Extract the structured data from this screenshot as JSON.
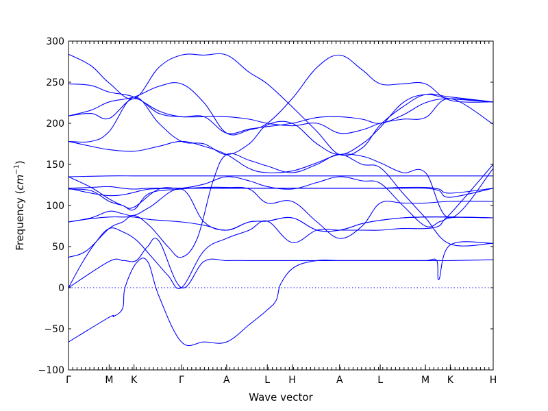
{
  "chart_data": {
    "type": "line",
    "xlabel": "Wave vector",
    "ylabel": "Frequency",
    "ylabel_unit": "cm",
    "ylabel_unit_exponent": "−1",
    "ylim": [
      -100,
      300
    ],
    "yticks": [
      -100,
      -50,
      0,
      50,
      100,
      150,
      200,
      250,
      300
    ],
    "ytick_labels": [
      "−100",
      "−50",
      "0",
      "50",
      "100",
      "150",
      "200",
      "250",
      "300"
    ],
    "xlim": [
      0,
      9.4
    ],
    "x_ticks": [
      {
        "label": "Γ",
        "x": 0
      },
      {
        "label": "M",
        "x": 0.9
      },
      {
        "label": "K",
        "x": 1.45
      },
      {
        "label": "Γ",
        "x": 2.5
      },
      {
        "label": "A",
        "x": 3.5
      },
      {
        "label": "L",
        "x": 4.4
      },
      {
        "label": "H",
        "x": 4.95
      },
      {
        "label": "A",
        "x": 6.0
      },
      {
        "label": "L",
        "x": 6.9
      },
      {
        "label": "M",
        "x": 7.9
      },
      {
        "label": "K",
        "x": 8.45
      },
      {
        "label": "H",
        "x": 9.4
      }
    ],
    "zero_line": 0,
    "line_color": "#0000ff",
    "series": [
      {
        "x": [
          0,
          0.9,
          1.0,
          1.2,
          1.25,
          1.5,
          1.75,
          2.0,
          2.5,
          3.0,
          3.5,
          4.0,
          4.4,
          4.6,
          4.7,
          5.0,
          5.5,
          6.0,
          6.5,
          6.9,
          7.4,
          7.9,
          8.15,
          8.2,
          8.45,
          9.4
        ],
        "y": [
          -66,
          -36,
          -35,
          -25,
          0,
          30,
          32,
          -10,
          -66,
          -66,
          -66,
          -45,
          -27,
          -15,
          5,
          25,
          33,
          33,
          33,
          33,
          33,
          33,
          33,
          10,
          52,
          54
        ]
      },
      {
        "x": [
          0,
          0.9,
          1.2,
          1.25,
          1.5,
          1.75,
          2.0,
          2.5,
          3.0,
          3.5,
          4.0,
          4.4,
          4.6,
          4.7,
          5.0,
          5.5,
          6.0,
          6.5,
          6.9,
          7.4,
          7.9,
          8.15,
          8.2,
          8.45,
          9.4
        ],
        "y": [
          0,
          32,
          33,
          33,
          33,
          50,
          57,
          0,
          32,
          33,
          33,
          33,
          33,
          33,
          33,
          33,
          33,
          33,
          33,
          33,
          33,
          33,
          33,
          33,
          34
        ]
      },
      {
        "x": [
          0,
          0.3,
          0.6,
          0.9,
          1.2,
          1.5,
          1.8,
          2.2,
          2.5,
          3.0,
          3.5,
          4.0,
          4.4,
          4.95,
          5.5,
          6.0,
          6.5,
          6.9,
          7.4,
          7.9,
          8.2,
          8.45,
          9.4
        ],
        "y": [
          0,
          30,
          55,
          72,
          68,
          58,
          40,
          15,
          0,
          45,
          60,
          70,
          81,
          55,
          70,
          70,
          70,
          70,
          72,
          72,
          75,
          85,
          85
        ]
      },
      {
        "x": [
          0,
          0.4,
          0.9,
          1.2,
          1.45,
          1.8,
          2.2,
          2.5,
          2.85,
          3.2,
          3.5,
          4.0,
          4.4,
          4.95,
          5.5,
          6.0,
          6.5,
          6.9,
          7.4,
          7.9,
          8.45,
          9.4
        ],
        "y": [
          37,
          45,
          72,
          80,
          88,
          75,
          50,
          37,
          60,
          130,
          162,
          155,
          148,
          140,
          150,
          162,
          150,
          146,
          115,
          85,
          53,
          54
        ]
      },
      {
        "x": [
          0,
          0.5,
          0.9,
          1.2,
          1.45,
          1.8,
          2.5,
          3.0,
          3.5,
          4.0,
          4.4,
          4.95,
          5.5,
          6.0,
          6.5,
          6.9,
          7.4,
          7.9,
          8.45,
          9.4
        ],
        "y": [
          80,
          84,
          86,
          86,
          86,
          83,
          80,
          76,
          70,
          80,
          81,
          85,
          70,
          70,
          78,
          82,
          85,
          86,
          86,
          85
        ]
      },
      {
        "x": [
          0,
          0.5,
          0.9,
          1.2,
          1.45,
          1.8,
          2.5,
          3.0,
          3.5,
          4.0,
          4.4,
          4.95,
          5.5,
          6.0,
          6.5,
          6.9,
          7.4,
          7.9,
          8.45,
          9.4
        ],
        "y": [
          80,
          85,
          93,
          90,
          88,
          98,
          120,
          80,
          70,
          80,
          81,
          85,
          70,
          70,
          78,
          82,
          85,
          86,
          86,
          85
        ]
      },
      {
        "x": [
          0,
          0.5,
          0.9,
          1.2,
          1.45,
          1.8,
          2.5,
          3.0,
          3.5,
          4.0,
          4.4,
          4.95,
          5.5,
          6.0,
          6.5,
          6.9,
          7.4,
          7.9,
          8.45,
          9.4
        ],
        "y": [
          120,
          118,
          105,
          100,
          95,
          115,
          120,
          122,
          122,
          120,
          103,
          105,
          80,
          60,
          75,
          103,
          103,
          103,
          105,
          105
        ]
      },
      {
        "x": [
          0,
          0.5,
          0.9,
          1.2,
          1.45,
          1.8,
          2.5,
          3.0,
          3.5,
          4.0,
          4.4,
          4.95,
          5.5,
          6.0,
          6.5,
          6.9,
          7.4,
          7.9,
          8.2,
          8.45,
          9.4
        ],
        "y": [
          121,
          115,
          112,
          113,
          116,
          120,
          121,
          121,
          121,
          121,
          121,
          121,
          121,
          121,
          121,
          121,
          121,
          121,
          118,
          110,
          121
        ]
      },
      {
        "x": [
          0,
          0.5,
          0.9,
          1.2,
          1.45,
          1.8,
          2.5,
          3.0,
          3.5,
          4.0,
          4.4,
          4.95,
          5.5,
          6.0,
          6.5,
          6.9,
          7.4,
          7.9,
          8.2,
          8.45,
          9.4
        ],
        "y": [
          121,
          122,
          123,
          121,
          120,
          121,
          121,
          121,
          121,
          121,
          121,
          121,
          121,
          121,
          121,
          121,
          122,
          122,
          120,
          115,
          121
        ]
      },
      {
        "x": [
          0,
          0.9,
          1.45,
          2.0,
          2.5,
          3.0,
          3.5,
          4.0,
          4.4,
          4.95,
          5.5,
          6.0,
          6.5,
          6.9,
          7.4,
          7.9,
          8.45,
          9.4
        ],
        "y": [
          135,
          136,
          136,
          136,
          136,
          136,
          136,
          136,
          136,
          136,
          136,
          136,
          136,
          136,
          136,
          136,
          136,
          136
        ]
      },
      {
        "x": [
          0,
          0.5,
          0.9,
          1.2,
          1.45,
          2.0,
          2.5,
          3.0,
          3.5,
          4.0,
          4.4,
          4.95,
          5.5,
          6.0,
          6.5,
          6.9,
          7.4,
          7.9,
          8.2,
          8.45,
          9.4
        ],
        "y": [
          135,
          122,
          108,
          100,
          98,
          120,
          121,
          126,
          135,
          130,
          123,
          120,
          128,
          135,
          130,
          127,
          100,
          75,
          80,
          90,
          150
        ]
      },
      {
        "x": [
          0,
          0.5,
          0.9,
          1.45,
          2.0,
          2.5,
          3.0,
          3.5,
          4.0,
          4.4,
          4.95,
          5.5,
          6.0,
          6.5,
          6.9,
          7.4,
          7.9,
          8.45,
          9.4
        ],
        "y": [
          178,
          172,
          168,
          166,
          172,
          178,
          172,
          162,
          145,
          140,
          142,
          152,
          162,
          160,
          152,
          140,
          140,
          85,
          145
        ]
      },
      {
        "x": [
          0,
          0.5,
          0.9,
          1.45,
          2.0,
          2.5,
          3.0,
          3.5,
          4.0,
          4.4,
          4.95,
          5.5,
          6.0,
          6.5,
          6.9,
          7.4,
          7.9,
          8.45,
          9.4
        ],
        "y": [
          178,
          178,
          190,
          232,
          200,
          178,
          175,
          162,
          175,
          198,
          200,
          175,
          162,
          175,
          195,
          225,
          235,
          230,
          226
        ]
      },
      {
        "x": [
          0,
          0.5,
          0.9,
          1.45,
          2.0,
          2.5,
          3.0,
          3.5,
          4.0,
          4.4,
          4.95,
          5.5,
          6.0,
          6.5,
          6.9,
          7.4,
          7.9,
          8.45,
          9.4
        ],
        "y": [
          209,
          212,
          206,
          230,
          212,
          208,
          208,
          208,
          205,
          200,
          197,
          200,
          188,
          192,
          200,
          205,
          207,
          230,
          199
        ]
      },
      {
        "x": [
          0,
          0.5,
          0.9,
          1.45,
          2.0,
          2.5,
          3.0,
          3.5,
          4.0,
          4.4,
          4.95,
          5.5,
          6.0,
          6.5,
          6.9,
          7.4,
          7.9,
          8.45,
          9.4
        ],
        "y": [
          248,
          246,
          238,
          232,
          215,
          208,
          208,
          188,
          193,
          196,
          200,
          207,
          208,
          205,
          200,
          210,
          225,
          230,
          226
        ]
      },
      {
        "x": [
          0,
          0.5,
          0.9,
          1.45,
          2.0,
          2.5,
          3.0,
          3.5,
          4.0,
          4.4,
          4.95,
          5.5,
          6.0,
          6.5,
          6.9,
          7.4,
          7.9,
          8.45,
          9.4
        ],
        "y": [
          209,
          216,
          226,
          232,
          245,
          248,
          225,
          188,
          192,
          200,
          230,
          268,
          283,
          265,
          248,
          248,
          248,
          228,
          226
        ]
      },
      {
        "x": [
          0,
          0.5,
          0.9,
          1.45,
          2.0,
          2.5,
          3.0,
          3.5,
          4.0,
          4.4,
          4.95,
          5.5,
          6.0,
          6.5,
          6.9,
          7.4,
          7.9,
          8.45,
          9.4
        ],
        "y": [
          284,
          270,
          249,
          230,
          268,
          283,
          283,
          283,
          262,
          248,
          220,
          190,
          162,
          170,
          198,
          220,
          235,
          232,
          226
        ]
      }
    ]
  }
}
